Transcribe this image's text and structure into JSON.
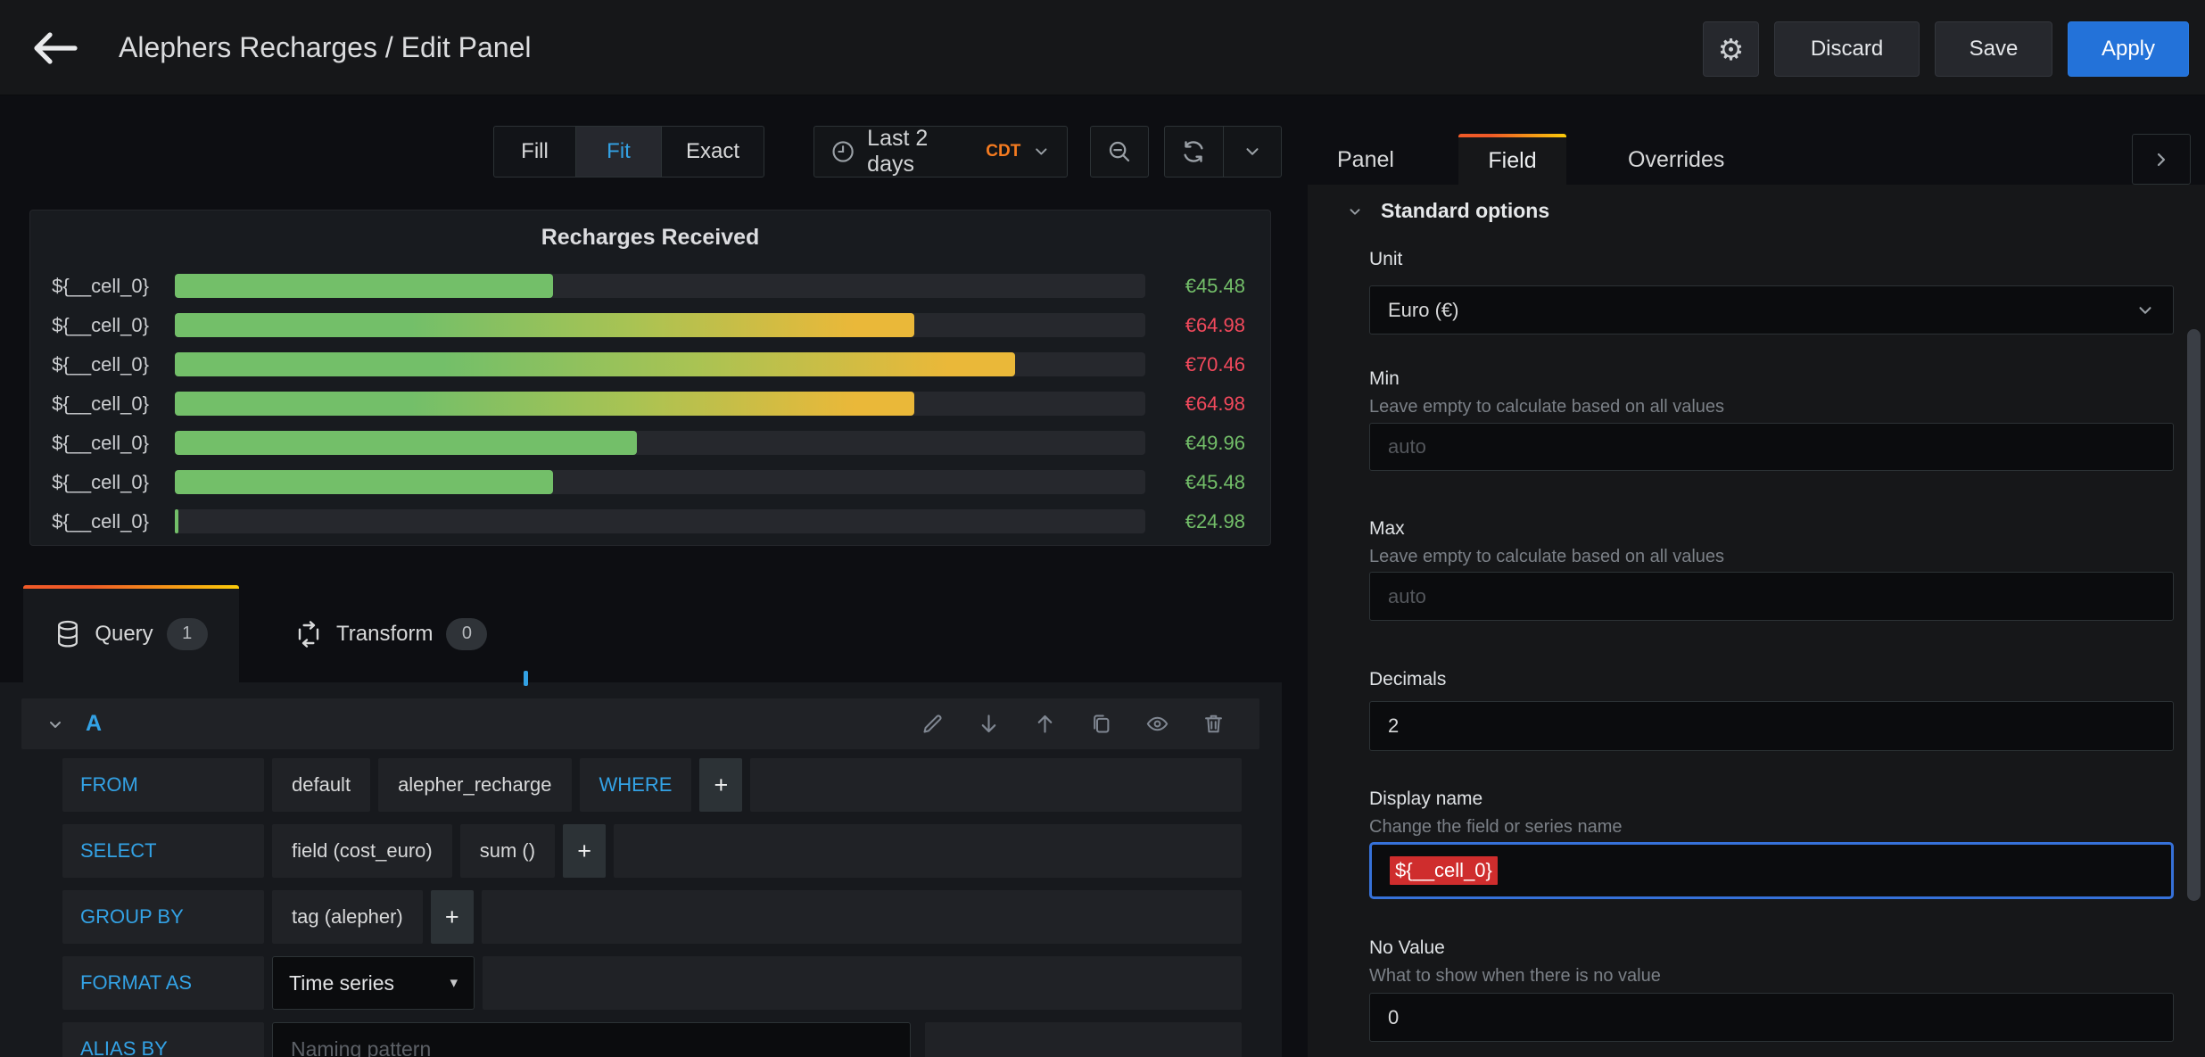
{
  "palette": {
    "accent_blue": "#33a2e5",
    "apply_blue": "#2372d9",
    "orange": "#f57b20",
    "green": "#73bf69",
    "yellow": "#eab839",
    "red": "#f2495c",
    "tab_gradient": [
      "#f05a28",
      "#fbca0a"
    ]
  },
  "icons": {
    "plus": "+",
    "caret_down": "▾"
  },
  "topbar": {
    "title": "Alephers Recharges / Edit Panel",
    "discard_label": "Discard",
    "save_label": "Save",
    "apply_label": "Apply"
  },
  "toolbar": {
    "fill_label": "Fill",
    "fit_label": "Fit",
    "exact_label": "Exact",
    "time_range_label": "Last 2 days",
    "timezone_label": "CDT"
  },
  "chart_data": {
    "type": "bar",
    "orientation": "horizontal",
    "title": "Recharges Received",
    "unit": "€",
    "axis": {
      "min": 24.98,
      "max": 77.5
    },
    "thresholds": {
      "red_from": 60
    },
    "categories": [
      "${__cell_0}",
      "${__cell_0}",
      "${__cell_0}",
      "${__cell_0}",
      "${__cell_0}",
      "${__cell_0}",
      "${__cell_0}"
    ],
    "values": [
      45.48,
      64.98,
      70.46,
      64.98,
      49.96,
      45.48,
      24.98
    ],
    "display_values": [
      "€45.48",
      "€64.98",
      "€70.46",
      "€64.98",
      "€49.96",
      "€45.48",
      "€24.98"
    ]
  },
  "query": {
    "tabs": [
      {
        "label": "Query",
        "count": "1"
      },
      {
        "label": "Transform",
        "count": "0"
      }
    ],
    "ref_id": "A",
    "rows": [
      {
        "label": "FROM",
        "segments": [
          {
            "text": "default"
          },
          {
            "text": "alepher_recharge"
          },
          {
            "text": "WHERE",
            "kind": "keyword"
          },
          {
            "kind": "plus"
          }
        ]
      },
      {
        "label": "SELECT",
        "segments": [
          {
            "text": "field (cost_euro)"
          },
          {
            "text": "sum ()"
          },
          {
            "kind": "plus"
          }
        ]
      },
      {
        "label": "GROUP BY",
        "segments": [
          {
            "text": "tag (alepher)"
          },
          {
            "kind": "plus"
          }
        ]
      },
      {
        "label": "FORMAT AS",
        "segments": [
          {
            "text": "Time series",
            "kind": "select"
          }
        ]
      },
      {
        "label": "ALIAS BY",
        "segments": [
          {
            "kind": "input",
            "placeholder": "Naming pattern"
          }
        ]
      }
    ]
  },
  "options": {
    "tabs": {
      "panel": "Panel",
      "field": "Field",
      "overrides": "Overrides"
    },
    "section_title": "Standard options",
    "unit_label": "Unit",
    "unit_value": "Euro (€)",
    "min_label": "Min",
    "min_desc": "Leave empty to calculate based on all values",
    "min_placeholder": "auto",
    "max_label": "Max",
    "max_desc": "Leave empty to calculate based on all values",
    "max_placeholder": "auto",
    "decimals_label": "Decimals",
    "decimals_value": "2",
    "display_label": "Display name",
    "display_desc": "Change the field or series name",
    "display_value": "${__cell_0}",
    "novalue_label": "No Value",
    "novalue_desc": "What to show when there is no value",
    "novalue_value": "0"
  }
}
